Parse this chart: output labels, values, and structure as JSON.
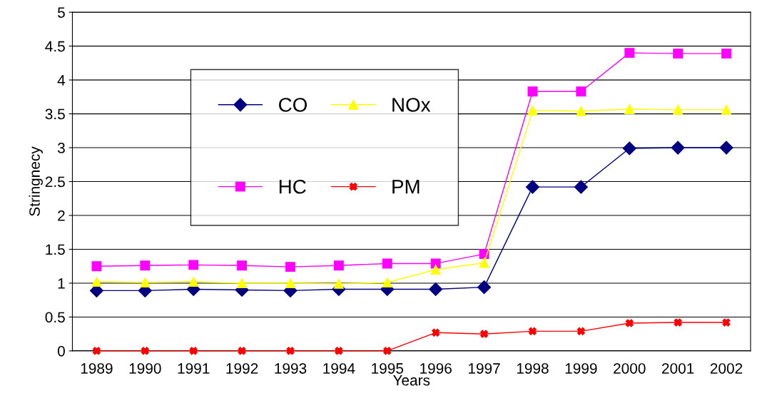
{
  "chart_data": {
    "type": "line",
    "xlabel": "Years",
    "ylabel": "Stringnecy",
    "categories": [
      "1989",
      "1990",
      "1991",
      "1992",
      "1993",
      "1994",
      "1995",
      "1996",
      "1997",
      "1998",
      "1999",
      "2000",
      "2001",
      "2002"
    ],
    "series": [
      {
        "name": "CO",
        "color": "#000080",
        "marker": "diamond",
        "values": [
          0.89,
          0.89,
          0.91,
          0.9,
          0.89,
          0.91,
          0.91,
          0.91,
          0.94,
          2.42,
          2.42,
          2.99,
          3.0,
          3.0
        ]
      },
      {
        "name": "HC",
        "color": "#ff00ff",
        "marker": "square",
        "values": [
          1.25,
          1.26,
          1.27,
          1.26,
          1.24,
          1.26,
          1.29,
          1.29,
          1.43,
          3.83,
          3.83,
          4.4,
          4.39,
          4.39
        ]
      },
      {
        "name": "NOx",
        "color": "#ffff00",
        "marker": "triangle",
        "values": [
          1.02,
          1.01,
          1.02,
          1.0,
          1.0,
          0.99,
          1.01,
          1.2,
          1.3,
          3.55,
          3.54,
          3.57,
          3.56,
          3.56
        ]
      },
      {
        "name": "PM",
        "color": "#ff0000",
        "marker": "cross",
        "values": [
          0,
          0,
          0,
          0,
          0,
          0,
          0,
          0.27,
          0.25,
          0.29,
          0.29,
          0.41,
          0.42,
          0.42
        ]
      }
    ],
    "ylim": [
      0,
      5
    ],
    "yticks": [
      0,
      0.5,
      1,
      1.5,
      2,
      2.5,
      3,
      3.5,
      4,
      4.5,
      5
    ],
    "grid": "y",
    "legend": "top left",
    "line_style": "solid"
  }
}
